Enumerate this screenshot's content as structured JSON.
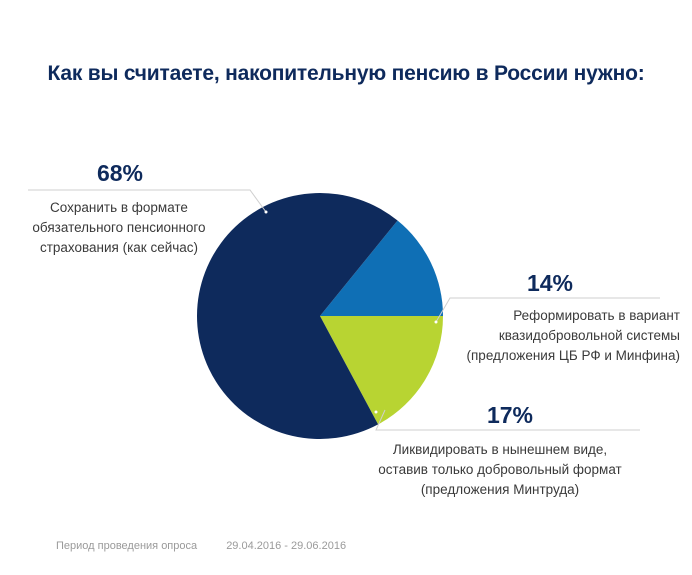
{
  "chart_data": {
    "type": "pie",
    "title": "Как вы считаете, накопительную пенсию в России нужно:",
    "slices": [
      {
        "value": 68,
        "value_label": "68%",
        "label_lines": [
          "Сохранить в формате",
          "обязательного пенсионного",
          "страхования (как сейчас)"
        ],
        "color": "#0e2a5c"
      },
      {
        "value": 14,
        "value_label": "14%",
        "label_lines": [
          "Реформировать в вариант",
          "квазидобровольной системы",
          "(предложения ЦБ РФ и Минфина)"
        ],
        "color": "#0f6fb5"
      },
      {
        "value": 17,
        "value_label": "17%",
        "label_lines": [
          "Ликвидировать в нынешнем виде,",
          "оставив только добровольный формат",
          "(предложения Минтруда)"
        ],
        "color": "#b8d432"
      }
    ]
  },
  "footer": {
    "label": "Период проведения опроса",
    "dates": "29.04.2016 - 29.06.2016"
  },
  "colors": {
    "title": "#0e2a5c",
    "leader_line": "#cfcfcf"
  }
}
